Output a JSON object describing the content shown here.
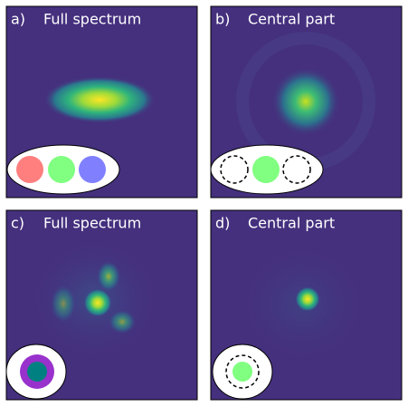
{
  "panels": [
    {
      "label": "a)",
      "title": "Full spectrum"
    },
    {
      "label": "b)",
      "title": "Central part"
    },
    {
      "label": "c)",
      "title": "Full spectrum"
    },
    {
      "label": "d)",
      "title": "Central part"
    }
  ]
}
